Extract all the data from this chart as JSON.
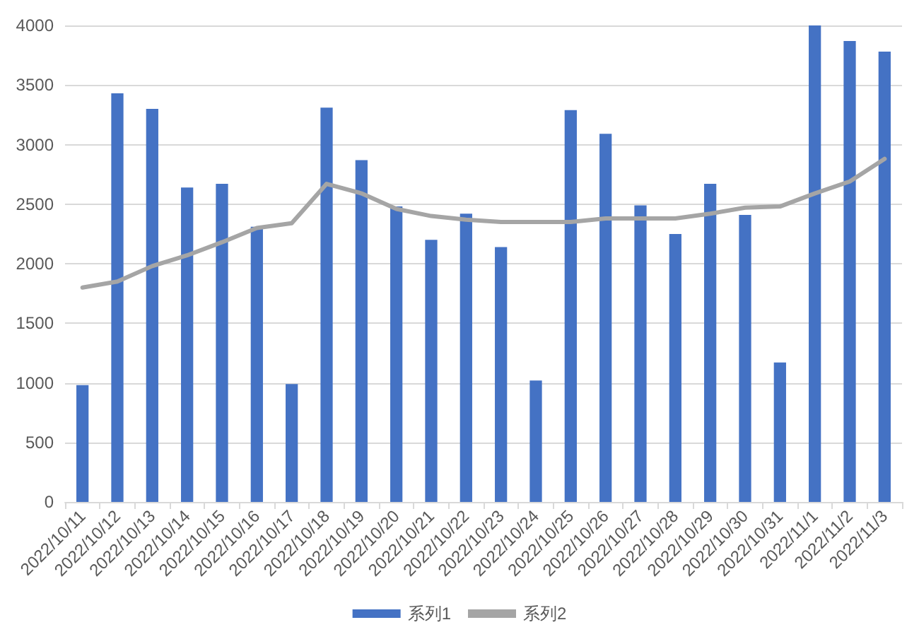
{
  "chart_data": {
    "type": "bar",
    "categories": [
      "2022/10/11",
      "2022/10/12",
      "2022/10/13",
      "2022/10/14",
      "2022/10/15",
      "2022/10/16",
      "2022/10/17",
      "2022/10/18",
      "2022/10/19",
      "2022/10/20",
      "2022/10/21",
      "2022/10/22",
      "2022/10/23",
      "2022/10/24",
      "2022/10/25",
      "2022/10/26",
      "2022/10/27",
      "2022/10/28",
      "2022/10/29",
      "2022/10/30",
      "2022/10/31",
      "2022/11/1",
      "2022/11/2",
      "2022/11/3"
    ],
    "series": [
      {
        "name": "系列1",
        "color": "#4472c4",
        "values": [
          980,
          3430,
          3300,
          2640,
          2670,
          2310,
          990,
          3310,
          2870,
          2480,
          2200,
          2420,
          2140,
          1020,
          3290,
          3090,
          2490,
          2250,
          2670,
          2410,
          1170,
          4000,
          3870,
          3780
        ]
      },
      {
        "name": "系列2",
        "type": "line",
        "color": "#a5a5a5",
        "values": [
          1800,
          1850,
          1980,
          2070,
          2180,
          2300,
          2340,
          2670,
          2590,
          2460,
          2400,
          2370,
          2350,
          2350,
          2350,
          2380,
          2380,
          2380,
          2420,
          2470,
          2480,
          2590,
          2690,
          2880
        ]
      }
    ],
    "ylim": [
      0,
      4000
    ],
    "yticks": [
      0,
      500,
      1000,
      1500,
      2000,
      2500,
      3000,
      3500,
      4000
    ],
    "grid": "y",
    "legend": "bottom",
    "marker": "none",
    "line_style": "solid"
  }
}
